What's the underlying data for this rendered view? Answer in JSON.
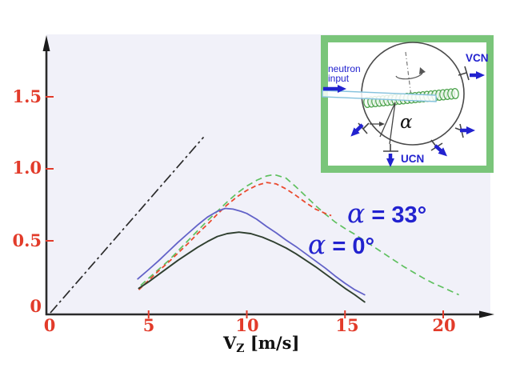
{
  "page": {
    "background": "#ffffff"
  },
  "chart_data": {
    "type": "line",
    "title": "",
    "xlabel": "V_Z [m/s]",
    "ylabel": "",
    "xlim": [
      0,
      22.5
    ],
    "ylim": [
      0,
      1.9
    ],
    "x_ticks": [
      0,
      5,
      10,
      15,
      20
    ],
    "y_ticks": [
      0,
      0.5,
      1.0,
      1.5
    ],
    "grid": false,
    "legend_position": "none (inline text annotations)",
    "plot_bg": "#f1f1f9",
    "axis_color": "#2b2b2b",
    "tick_color": "#e23b2a",
    "series": [
      {
        "name": "reference-dash-dot-line",
        "color": "#2b2b2b",
        "dash": "13 4 3 4",
        "width": 1.7,
        "points": [
          [
            0,
            0
          ],
          [
            7.8,
            1.22
          ]
        ]
      },
      {
        "name": "alpha-33-green-dashed",
        "color": "#5fc05f",
        "dash": "8 5",
        "width": 1.7,
        "points": [
          [
            4.6,
            0.19
          ],
          [
            5,
            0.24
          ],
          [
            5.5,
            0.3
          ],
          [
            6,
            0.36
          ],
          [
            6.5,
            0.43
          ],
          [
            7,
            0.5
          ],
          [
            7.5,
            0.57
          ],
          [
            8,
            0.64
          ],
          [
            8.5,
            0.705
          ],
          [
            9,
            0.77
          ],
          [
            9.5,
            0.83
          ],
          [
            10,
            0.88
          ],
          [
            10.5,
            0.92
          ],
          [
            11,
            0.95
          ],
          [
            11.4,
            0.96
          ],
          [
            12,
            0.935
          ],
          [
            12.5,
            0.875
          ],
          [
            13,
            0.81
          ],
          [
            13.5,
            0.745
          ],
          [
            14,
            0.685
          ],
          [
            14.5,
            0.63
          ],
          [
            15,
            0.585
          ],
          [
            15.5,
            0.545
          ],
          [
            16,
            0.5
          ],
          [
            16.5,
            0.455
          ],
          [
            17,
            0.41
          ],
          [
            17.5,
            0.365
          ],
          [
            18,
            0.32
          ],
          [
            18.5,
            0.28
          ],
          [
            19,
            0.24
          ],
          [
            19.5,
            0.205
          ],
          [
            20,
            0.175
          ],
          [
            20.4,
            0.15
          ],
          [
            20.8,
            0.125
          ]
        ]
      },
      {
        "name": "alpha-33-red-dashed",
        "color": "#ea4a2e",
        "dash": "6 4",
        "width": 1.8,
        "points": [
          [
            4.5,
            0.16
          ],
          [
            5,
            0.225
          ],
          [
            5.5,
            0.29
          ],
          [
            6,
            0.35
          ],
          [
            6.5,
            0.415
          ],
          [
            7,
            0.48
          ],
          [
            7.5,
            0.55
          ],
          [
            8,
            0.615
          ],
          [
            8.5,
            0.685
          ],
          [
            9,
            0.75
          ],
          [
            9.5,
            0.805
          ],
          [
            10,
            0.85
          ],
          [
            10.5,
            0.885
          ],
          [
            11,
            0.905
          ],
          [
            11.5,
            0.895
          ],
          [
            12,
            0.86
          ],
          [
            12.5,
            0.815
          ],
          [
            13,
            0.765
          ],
          [
            13.5,
            0.72
          ],
          [
            14,
            0.69
          ],
          [
            14.3,
            0.675
          ]
        ]
      },
      {
        "name": "alpha-0-blue-solid",
        "color": "#6262c8",
        "dash": "",
        "width": 1.8,
        "points": [
          [
            4.45,
            0.235
          ],
          [
            5,
            0.3
          ],
          [
            5.5,
            0.36
          ],
          [
            6,
            0.425
          ],
          [
            6.5,
            0.49
          ],
          [
            7,
            0.55
          ],
          [
            7.5,
            0.61
          ],
          [
            8,
            0.665
          ],
          [
            8.5,
            0.705
          ],
          [
            8.9,
            0.725
          ],
          [
            9.3,
            0.72
          ],
          [
            9.7,
            0.705
          ],
          [
            10,
            0.69
          ],
          [
            10.5,
            0.65
          ],
          [
            11,
            0.6
          ],
          [
            11.5,
            0.555
          ],
          [
            12,
            0.505
          ],
          [
            12.5,
            0.46
          ],
          [
            13,
            0.41
          ],
          [
            13.5,
            0.36
          ],
          [
            14,
            0.31
          ],
          [
            14.5,
            0.255
          ],
          [
            15,
            0.205
          ],
          [
            15.5,
            0.16
          ],
          [
            16,
            0.125
          ]
        ]
      },
      {
        "name": "alpha-0-dark-solid",
        "color": "#2f3f2f",
        "dash": "",
        "width": 1.9,
        "points": [
          [
            4.5,
            0.17
          ],
          [
            5,
            0.215
          ],
          [
            5.5,
            0.265
          ],
          [
            6,
            0.315
          ],
          [
            6.5,
            0.365
          ],
          [
            7,
            0.41
          ],
          [
            7.5,
            0.455
          ],
          [
            8,
            0.495
          ],
          [
            8.5,
            0.53
          ],
          [
            9,
            0.55
          ],
          [
            9.6,
            0.56
          ],
          [
            10.2,
            0.55
          ],
          [
            10.8,
            0.525
          ],
          [
            11.4,
            0.49
          ],
          [
            12,
            0.45
          ],
          [
            12.5,
            0.41
          ],
          [
            13,
            0.365
          ],
          [
            13.5,
            0.32
          ],
          [
            14,
            0.27
          ],
          [
            14.5,
            0.22
          ],
          [
            15,
            0.17
          ],
          [
            15.5,
            0.125
          ],
          [
            16,
            0.075
          ]
        ]
      }
    ],
    "annotations": [
      {
        "text": "α = 33°",
        "color": "#2222cf",
        "x": 15.5,
        "y": 0.65
      },
      {
        "text": "α = 0°",
        "color": "#2222cf",
        "x": 13.4,
        "y": 0.44
      }
    ]
  },
  "axis_labels": {
    "x_ticks": [
      "0",
      "5",
      "10",
      "15",
      "20"
    ],
    "y_ticks": [
      "0",
      "0.5",
      "1.0",
      "1.5"
    ],
    "x_title_symbol": "V",
    "x_title_sub": "Z",
    "x_title_unit": " [m/s]"
  },
  "annotations": {
    "alpha33_symbol": "α",
    "alpha33_rest": " = 33°",
    "alpha0_symbol": "α",
    "alpha0_rest": " = 0°"
  },
  "inset": {
    "border_color": "#7ac57a",
    "arrow_color": "#2222cf",
    "labels": {
      "neutron_line1": "neutron",
      "neutron_line2": "input",
      "vcn": "VCN",
      "ucn": "UCN",
      "alpha": "α"
    }
  }
}
